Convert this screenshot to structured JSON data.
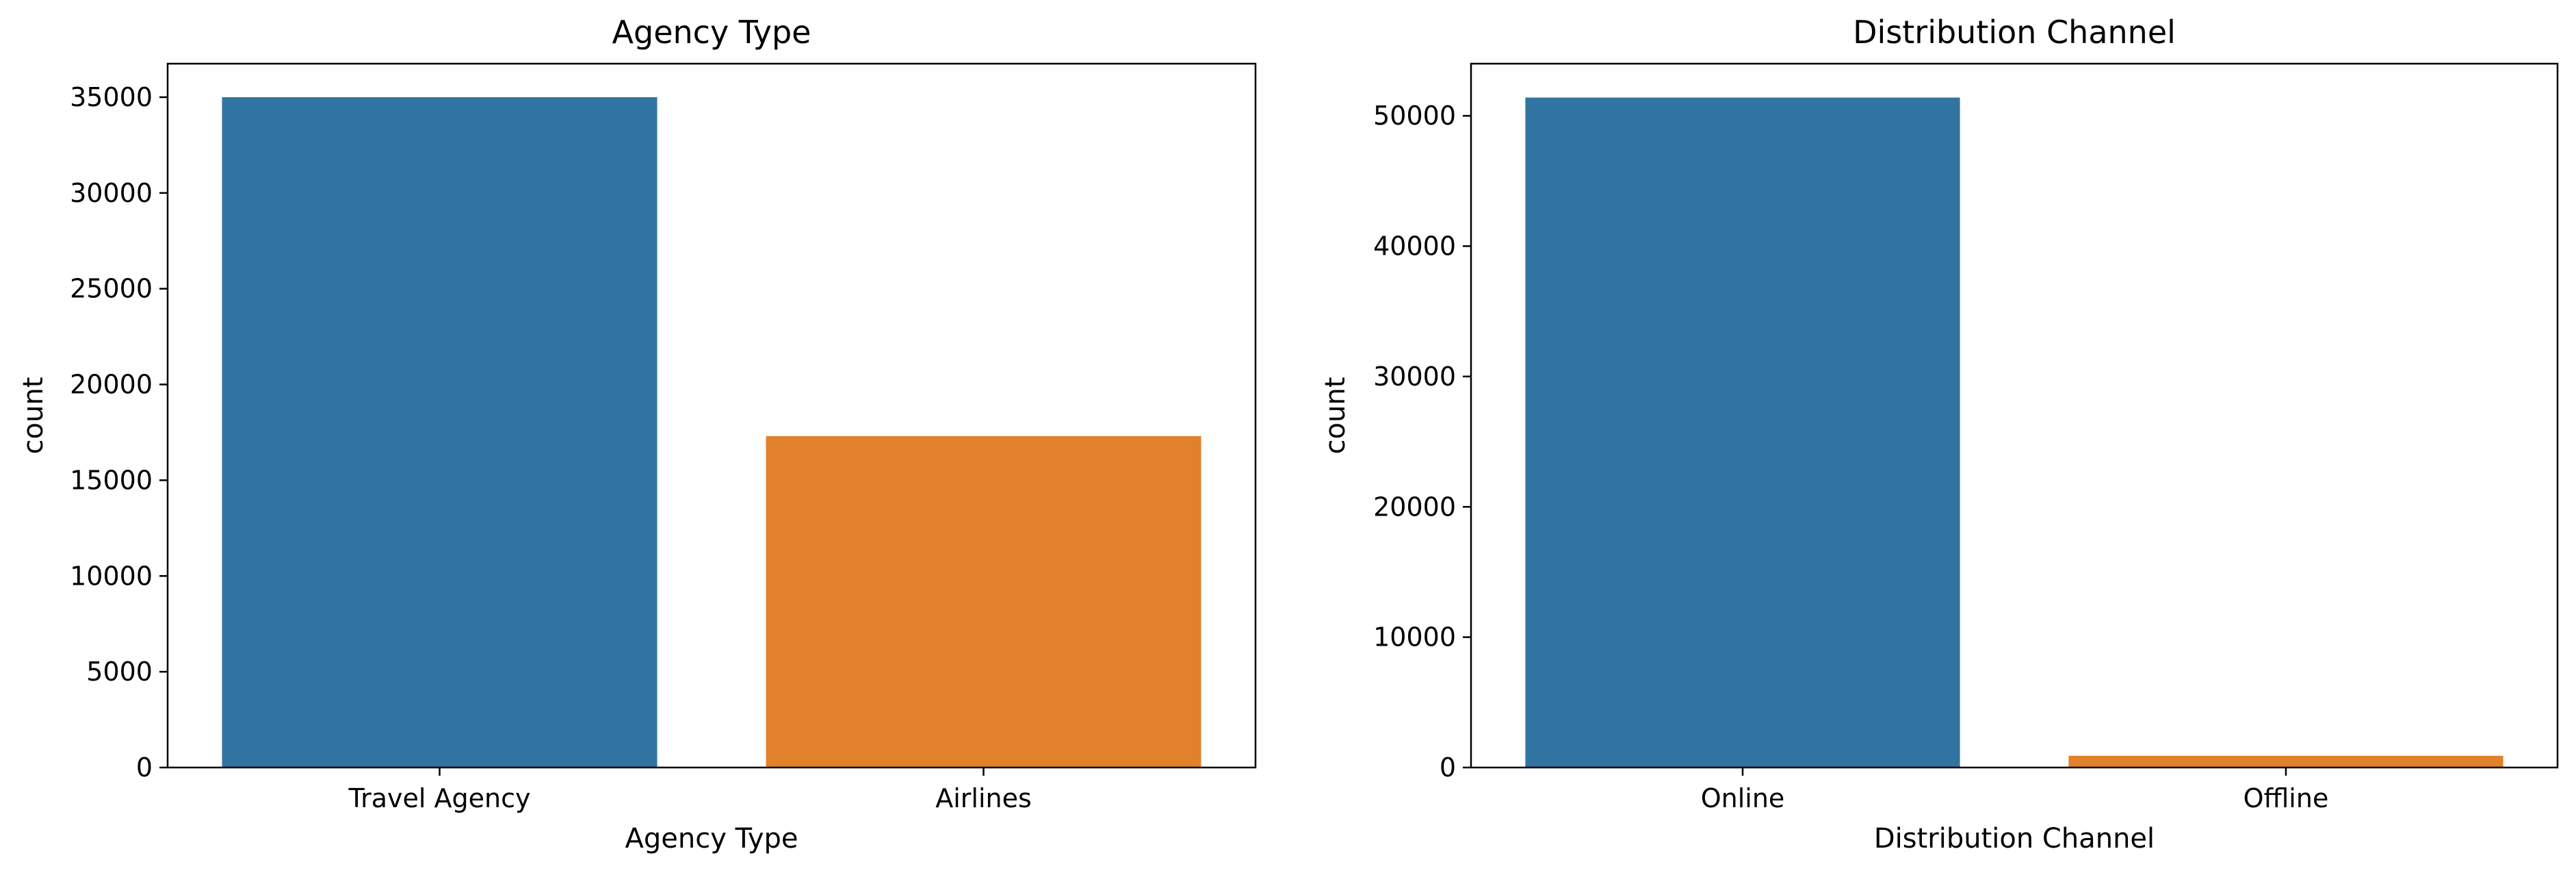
{
  "chart_data": [
    {
      "type": "bar",
      "title": "Agency Type",
      "xlabel": "Agency Type",
      "ylabel": "count",
      "categories": [
        "Travel Agency",
        "Airlines"
      ],
      "values": [
        35000,
        17300
      ],
      "colors": [
        "#3274a1",
        "#e1812c"
      ],
      "ylim": [
        0,
        36750
      ],
      "yticks": [
        0,
        5000,
        10000,
        15000,
        20000,
        25000,
        30000,
        35000
      ],
      "grid": false
    },
    {
      "type": "bar",
      "title": "Distribution Channel",
      "xlabel": "Distribution Channel",
      "ylabel": "count",
      "categories": [
        "Online",
        "Offline"
      ],
      "values": [
        51400,
        900
      ],
      "colors": [
        "#3274a1",
        "#e1812c"
      ],
      "ylim": [
        0,
        54000
      ],
      "yticks": [
        0,
        10000,
        20000,
        30000,
        40000,
        50000
      ],
      "grid": false
    }
  ]
}
